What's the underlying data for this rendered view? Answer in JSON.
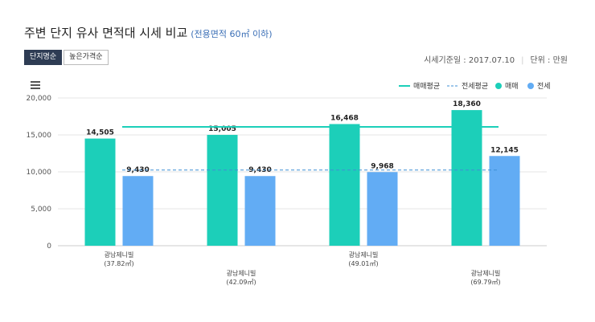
{
  "header": {
    "title": "주변 단지 유사 면적대 시세 비교",
    "subtitle": "(전용면적 60㎡ 이하)"
  },
  "tabs": [
    {
      "label": "단지명순",
      "active": true
    },
    {
      "label": "높은가격순",
      "active": false
    }
  ],
  "meta": {
    "base_date": "시세기준일 : 2017.07.10",
    "unit": "단위 : 만원"
  },
  "menu_icon": "hamburger-menu-icon",
  "chart_data": {
    "type": "bar",
    "categories": [
      [
        "광남제니빌",
        "(37.82㎡)"
      ],
      [
        "광남제니빌",
        "(42.09㎡)"
      ],
      [
        "광남제니빌",
        "(49.01㎡)"
      ],
      [
        "광남제니빌",
        "(69.79㎡)"
      ]
    ],
    "series": [
      {
        "name": "매매",
        "color": "#1ccfb9",
        "values": [
          14505,
          15005,
          16468,
          18360
        ],
        "labels": [
          "14,505",
          "15,005",
          "16,468",
          "18,360"
        ]
      },
      {
        "name": "전세",
        "color": "#62acf4",
        "values": [
          9430,
          9430,
          9968,
          12145
        ],
        "labels": [
          "9,430",
          "9,430",
          "9,968",
          "12,145"
        ]
      }
    ],
    "averages": [
      {
        "name": "매매평균",
        "value": 16084,
        "color": "#1ccfb9",
        "style": "solid"
      },
      {
        "name": "전세평균",
        "value": 10243,
        "color": "#3d8fd6",
        "style": "dashed"
      }
    ],
    "ylim": [
      0,
      20000
    ],
    "yticks": [
      {
        "value": 0,
        "label": "0"
      },
      {
        "value": 5000,
        "label": "5,000"
      },
      {
        "value": 10000,
        "label": "10,000"
      },
      {
        "value": 15000,
        "label": "15,000"
      },
      {
        "value": 20000,
        "label": "20,000"
      }
    ],
    "legend_position": "top-right",
    "grid": true
  }
}
